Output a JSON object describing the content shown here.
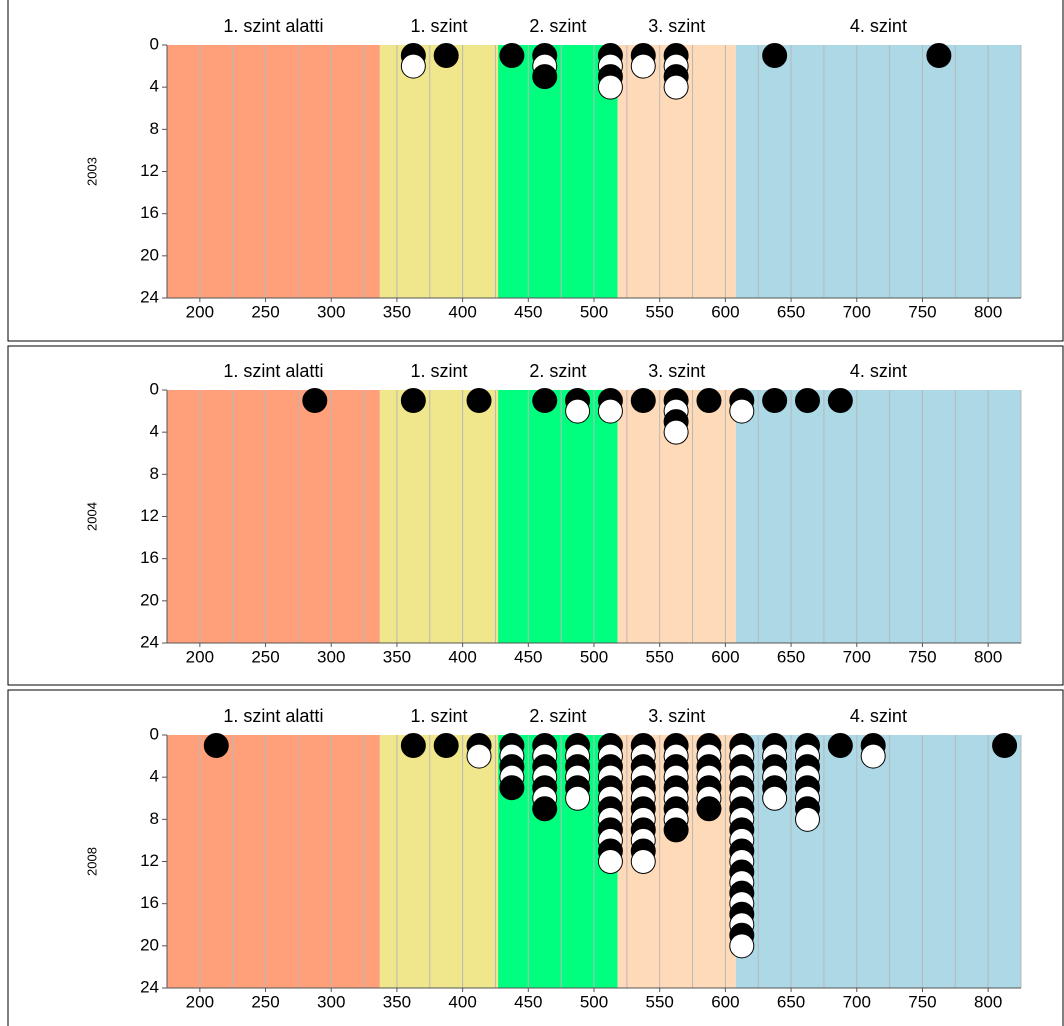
{
  "chart_data": [
    {
      "type": "dotstack",
      "ylabel": "2003",
      "xlim": [
        175,
        825
      ],
      "xticks": [
        200,
        250,
        300,
        350,
        400,
        450,
        500,
        550,
        600,
        650,
        700,
        750,
        800
      ],
      "xgrid_step": 25,
      "ylim": [
        0,
        24
      ],
      "yticks": [
        0,
        4,
        8,
        12,
        16,
        20,
        24
      ],
      "y_inverted": true,
      "regions": [
        {
          "label": "1. szint alatti",
          "start": 175,
          "end": 337,
          "color": "#ffa07a"
        },
        {
          "label": "1. szint",
          "start": 337,
          "end": 427,
          "color": "#f0e68c"
        },
        {
          "label": "2. szint",
          "start": 427,
          "end": 518,
          "color": "#00ff7f"
        },
        {
          "label": "3. szint",
          "start": 518,
          "end": 608,
          "color": "#ffdab9"
        },
        {
          "label": "4. szint",
          "start": 608,
          "end": 825,
          "color": "#add8e6"
        }
      ],
      "dot_colors": [
        "#000000",
        "#ffffff"
      ],
      "x": [
        362.5,
        387.5,
        437.5,
        462.5,
        512.5,
        537.5,
        562.5,
        637.5,
        762.5
      ],
      "values": [
        2,
        1,
        1,
        3,
        4,
        2,
        4,
        1,
        1
      ]
    },
    {
      "type": "dotstack",
      "ylabel": "2004",
      "xlim": [
        175,
        825
      ],
      "xticks": [
        200,
        250,
        300,
        350,
        400,
        450,
        500,
        550,
        600,
        650,
        700,
        750,
        800
      ],
      "xgrid_step": 25,
      "ylim": [
        0,
        24
      ],
      "yticks": [
        0,
        4,
        8,
        12,
        16,
        20,
        24
      ],
      "y_inverted": true,
      "regions": [
        {
          "label": "1. szint alatti",
          "start": 175,
          "end": 337,
          "color": "#ffa07a"
        },
        {
          "label": "1. szint",
          "start": 337,
          "end": 427,
          "color": "#f0e68c"
        },
        {
          "label": "2. szint",
          "start": 427,
          "end": 518,
          "color": "#00ff7f"
        },
        {
          "label": "3. szint",
          "start": 518,
          "end": 608,
          "color": "#ffdab9"
        },
        {
          "label": "4. szint",
          "start": 608,
          "end": 825,
          "color": "#add8e6"
        }
      ],
      "dot_colors": [
        "#000000",
        "#ffffff"
      ],
      "x": [
        287.5,
        362.5,
        412.5,
        462.5,
        487.5,
        512.5,
        537.5,
        562.5,
        587.5,
        612.5,
        637.5,
        662.5,
        687.5
      ],
      "values": [
        1,
        1,
        1,
        1,
        2,
        2,
        1,
        4,
        1,
        2,
        1,
        1,
        1
      ]
    },
    {
      "type": "dotstack",
      "ylabel": "2008",
      "xlim": [
        175,
        825
      ],
      "xticks": [
        200,
        250,
        300,
        350,
        400,
        450,
        500,
        550,
        600,
        650,
        700,
        750,
        800
      ],
      "xgrid_step": 25,
      "ylim": [
        0,
        24
      ],
      "yticks": [
        0,
        4,
        8,
        12,
        16,
        20,
        24
      ],
      "y_inverted": true,
      "regions": [
        {
          "label": "1. szint alatti",
          "start": 175,
          "end": 337,
          "color": "#ffa07a"
        },
        {
          "label": "1. szint",
          "start": 337,
          "end": 427,
          "color": "#f0e68c"
        },
        {
          "label": "2. szint",
          "start": 427,
          "end": 518,
          "color": "#00ff7f"
        },
        {
          "label": "3. szint",
          "start": 518,
          "end": 608,
          "color": "#ffdab9"
        },
        {
          "label": "4. szint",
          "start": 608,
          "end": 825,
          "color": "#add8e6"
        }
      ],
      "dot_colors": [
        "#000000",
        "#ffffff"
      ],
      "x": [
        212.5,
        362.5,
        387.5,
        412.5,
        437.5,
        462.5,
        487.5,
        512.5,
        537.5,
        562.5,
        587.5,
        612.5,
        637.5,
        662.5,
        687.5,
        712.5,
        812.5
      ],
      "values": [
        1,
        1,
        1,
        2,
        5,
        7,
        6,
        12,
        12,
        9,
        7,
        20,
        6,
        8,
        1,
        2,
        1
      ]
    }
  ]
}
